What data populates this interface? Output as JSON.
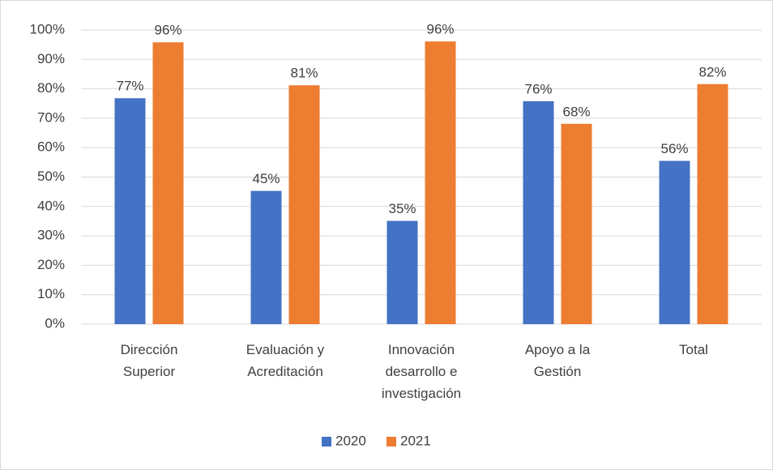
{
  "chart_data": {
    "type": "bar",
    "categories": [
      "Dirección Superior",
      "Evaluación y Acreditación",
      "Innovación desarrollo e investigación",
      "Apoyo a la Gestión",
      "Total"
    ],
    "series": [
      {
        "name": "2020",
        "color": "#4472c4",
        "values": [
          76.8,
          45.3,
          35.1,
          75.8,
          55.5
        ],
        "value_labels": [
          "77%",
          "45%",
          "35%",
          "76%",
          "56%"
        ]
      },
      {
        "name": "2021",
        "color": "#ed7d31",
        "values": [
          95.8,
          81.2,
          96.1,
          68.1,
          81.6
        ],
        "value_labels": [
          "96%",
          "81%",
          "96%",
          "68%",
          "82%"
        ]
      }
    ],
    "ylim": [
      0,
      100
    ],
    "yticks": [
      {
        "value": 0,
        "label": "0%"
      },
      {
        "value": 10,
        "label": "10%"
      },
      {
        "value": 20,
        "label": "20%"
      },
      {
        "value": 30,
        "label": "30%"
      },
      {
        "value": 40,
        "label": "40%"
      },
      {
        "value": 50,
        "label": "50%"
      },
      {
        "value": 60,
        "label": "60%"
      },
      {
        "value": 70,
        "label": "70%"
      },
      {
        "value": 80,
        "label": "80%"
      },
      {
        "value": 90,
        "label": "90%"
      },
      {
        "value": 100,
        "label": "100%"
      }
    ],
    "grid": true,
    "legend": "bottom"
  }
}
